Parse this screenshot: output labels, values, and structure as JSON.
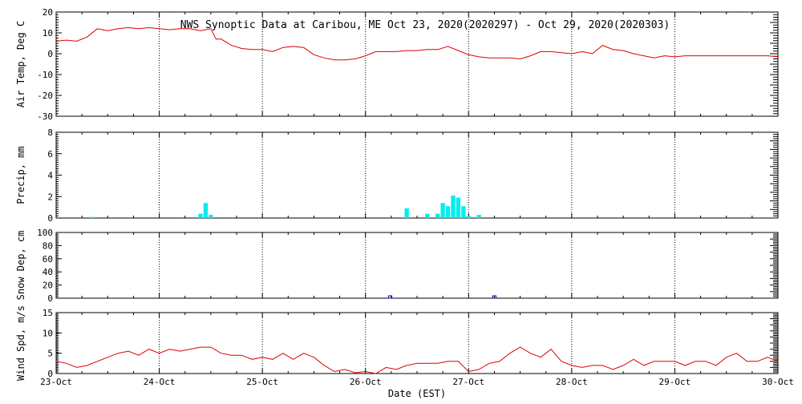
{
  "title": "NWS Synoptic Data at Caribou, ME   Oct 23, 2020(2020297) - Oct 29, 2020(2020303)",
  "x_axis": {
    "label": "Date (EST)",
    "ticks": [
      "23-Oct",
      "24-Oct",
      "25-Oct",
      "26-Oct",
      "27-Oct",
      "28-Oct",
      "29-Oct",
      "30-Oct"
    ]
  },
  "colors": {
    "temp": "#dd0000",
    "precip": "#00eeee",
    "snow": "#0000aa",
    "wind": "#dd0000",
    "axis": "#000000"
  },
  "chart_data": [
    {
      "type": "line",
      "name": "air_temp",
      "ylabel": "Air Temp, Deg C",
      "ylim": [
        -30,
        20
      ],
      "yticks": [
        -30,
        -20,
        -10,
        0,
        10,
        20
      ],
      "x_unit": "days since 23-Oct 00:00 EST",
      "x": [
        0,
        0.1,
        0.2,
        0.3,
        0.4,
        0.5,
        0.6,
        0.7,
        0.8,
        0.9,
        1.0,
        1.1,
        1.2,
        1.3,
        1.4,
        1.5,
        1.55,
        1.6,
        1.7,
        1.8,
        1.9,
        2.0,
        2.1,
        2.2,
        2.3,
        2.4,
        2.5,
        2.6,
        2.7,
        2.8,
        2.9,
        3.0,
        3.1,
        3.2,
        3.3,
        3.4,
        3.5,
        3.6,
        3.7,
        3.8,
        3.9,
        4.0,
        4.1,
        4.2,
        4.3,
        4.4,
        4.5,
        4.6,
        4.7,
        4.8,
        4.9,
        5.0,
        5.1,
        5.2,
        5.3,
        5.4,
        5.5,
        5.6,
        5.7,
        5.8,
        5.9,
        6.0,
        6.1,
        6.2,
        6.3,
        6.4,
        6.5,
        6.6,
        6.7,
        6.8,
        6.9,
        7.0
      ],
      "y": [
        6,
        6.5,
        6,
        8,
        12,
        11,
        12,
        12.5,
        12,
        12.5,
        12,
        11.5,
        12,
        12,
        11,
        12,
        7,
        7,
        4,
        2.5,
        2,
        2,
        1,
        3,
        3.5,
        3,
        -0.5,
        -2,
        -3,
        -3,
        -2.5,
        -1,
        1,
        1,
        1,
        1.5,
        1.5,
        2,
        2,
        3.5,
        1.5,
        -0.5,
        -1.5,
        -2,
        -2,
        -2,
        -2.5,
        -1,
        1,
        1,
        0.5,
        0,
        1,
        0,
        4,
        2,
        1.5,
        0,
        -1,
        -2,
        -1,
        -1.5,
        -1,
        -1,
        -1,
        -1,
        -1,
        -1,
        -1,
        -1,
        -1,
        -1.5
      ]
    },
    {
      "type": "bar",
      "name": "precip",
      "ylabel": "Precip, mm",
      "ylim": [
        0,
        8
      ],
      "yticks": [
        0,
        2,
        4,
        6,
        8
      ],
      "x_unit": "days since 23-Oct 00:00 EST",
      "x": [
        0.35,
        1.4,
        1.45,
        1.5,
        3.4,
        3.6,
        3.7,
        3.75,
        3.8,
        3.85,
        3.9,
        3.95,
        4.0,
        4.1
      ],
      "values": [
        0.1,
        0.4,
        1.4,
        0.3,
        0.9,
        0.4,
        0.4,
        1.4,
        1.1,
        2.1,
        1.9,
        1.1,
        0.2,
        0.3
      ]
    },
    {
      "type": "bar",
      "name": "snow_depth",
      "ylabel": "Snow Dep, cm",
      "ylim": [
        0,
        100
      ],
      "yticks": [
        0,
        20,
        40,
        60,
        80,
        100
      ],
      "x_unit": "days since 23-Oct 00:00 EST",
      "x": [
        3.24,
        4.25
      ],
      "values": [
        0.5,
        0.5
      ]
    },
    {
      "type": "line",
      "name": "wind_speed",
      "ylabel": "Wind Spd, m/s",
      "ylim": [
        0,
        15
      ],
      "yticks": [
        0,
        5,
        10,
        15
      ],
      "x_unit": "days since 23-Oct 00:00 EST",
      "x": [
        0,
        0.1,
        0.2,
        0.3,
        0.4,
        0.5,
        0.6,
        0.7,
        0.8,
        0.9,
        1.0,
        1.1,
        1.2,
        1.3,
        1.4,
        1.5,
        1.6,
        1.7,
        1.8,
        1.9,
        2.0,
        2.1,
        2.2,
        2.3,
        2.4,
        2.5,
        2.6,
        2.7,
        2.8,
        2.9,
        3.0,
        3.1,
        3.2,
        3.3,
        3.4,
        3.5,
        3.6,
        3.7,
        3.8,
        3.9,
        4.0,
        4.1,
        4.2,
        4.3,
        4.4,
        4.5,
        4.6,
        4.7,
        4.8,
        4.9,
        5.0,
        5.1,
        5.2,
        5.3,
        5.4,
        5.5,
        5.6,
        5.7,
        5.8,
        5.9,
        6.0,
        6.1,
        6.2,
        6.3,
        6.4,
        6.5,
        6.6,
        6.7,
        6.8,
        6.9,
        7.0
      ],
      "y": [
        3,
        2.5,
        1.5,
        2,
        3,
        4,
        5,
        5.5,
        4.5,
        6,
        5,
        6,
        5.5,
        6,
        6.5,
        6.5,
        5,
        4.5,
        4.5,
        3.5,
        4,
        3.5,
        5,
        3.5,
        5,
        4,
        2,
        0.5,
        1,
        0.2,
        0.5,
        0,
        1.5,
        1,
        2,
        2.5,
        2.5,
        2.5,
        3,
        3,
        0.5,
        1,
        2.5,
        3,
        5,
        6.5,
        5,
        4,
        6,
        3,
        2,
        1.5,
        2,
        2,
        1,
        2,
        3.5,
        2,
        3,
        3,
        3,
        2,
        3,
        3,
        2,
        4,
        5,
        3,
        3,
        4,
        3
      ]
    }
  ]
}
